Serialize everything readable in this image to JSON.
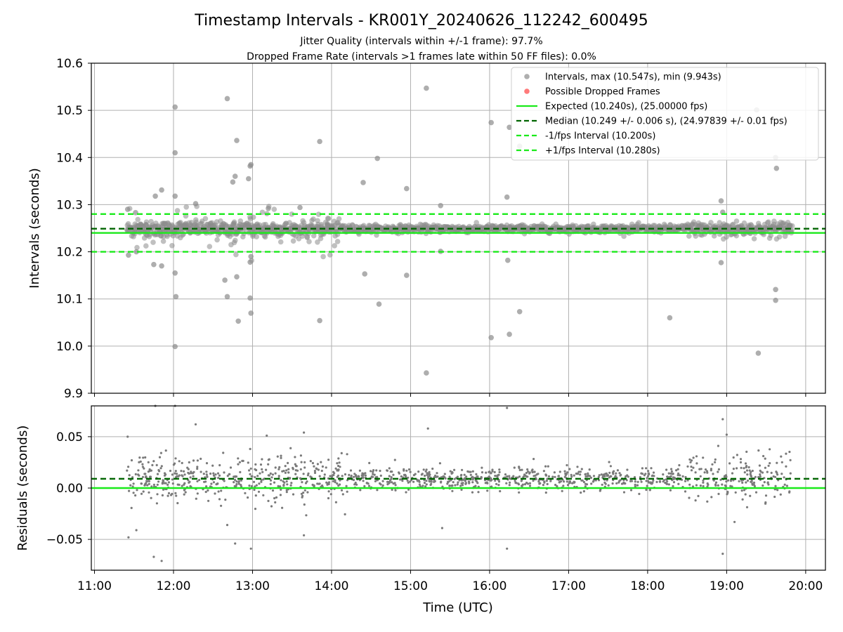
{
  "chart_data": [
    {
      "type": "scatter",
      "title": "Timestamp Intervals - KR001Y_20240626_112242_600495",
      "subtitle_lines": [
        "Jitter Quality (intervals within +/-1 frame): 97.7%",
        "Dropped Frame Rate (intervals >1 frames late within 50 FF files): 0.0%"
      ],
      "xlabel": "",
      "ylabel": "Intervals (seconds)",
      "xlim_hours": [
        10.96,
        20.25
      ],
      "ylim": [
        9.9,
        10.6
      ],
      "yticks": [
        9.9,
        10.0,
        10.1,
        10.2,
        10.3,
        10.4,
        10.5,
        10.6
      ],
      "ytick_labels": [
        "9.9",
        "10.0",
        "10.1",
        "10.2",
        "10.3",
        "10.4",
        "10.5",
        "10.6"
      ],
      "grid": true,
      "legend_position": "top-right",
      "legend": [
        "Intervals, max (10.547s), min (9.943s)",
        "Possible Dropped Frames",
        "Expected (10.240s), (25.00000 fps)",
        "Median (10.249 +/- 0.006 s), (24.97839 +/- 0.01 fps)",
        "-1/fps Interval (10.200s)",
        "+1/fps Interval (10.280s)"
      ],
      "reference_lines": {
        "expected": 10.24,
        "median": 10.249,
        "minus_1_fps": 10.2,
        "plus_1_fps": 10.28
      },
      "series": [
        {
          "name": "Intervals, max (10.547s), min (9.943s)",
          "time_range_hours": [
            11.41,
            19.83
          ],
          "dense_band_center": 10.249,
          "dense_band_halfwidth": 0.006,
          "outliers": [
            [
              11.42,
              10.29
            ],
            [
              11.43,
              10.193
            ],
            [
              11.52,
              10.283
            ],
            [
              11.53,
              10.2
            ],
            [
              11.75,
              10.173
            ],
            [
              11.77,
              10.318
            ],
            [
              11.85,
              10.331
            ],
            [
              11.85,
              10.17
            ],
            [
              12.02,
              10.507
            ],
            [
              12.02,
              10.41
            ],
            [
              12.02,
              10.318
            ],
            [
              12.02,
              10.155
            ],
            [
              12.03,
              10.105
            ],
            [
              12.02,
              9.999
            ],
            [
              12.28,
              10.302
            ],
            [
              12.65,
              10.14
            ],
            [
              12.68,
              10.525
            ],
            [
              12.68,
              10.105
            ],
            [
              12.75,
              10.348
            ],
            [
              12.78,
              10.36
            ],
            [
              12.8,
              10.436
            ],
            [
              12.8,
              10.147
            ],
            [
              12.82,
              10.053
            ],
            [
              12.95,
              10.355
            ],
            [
              12.97,
              10.382
            ],
            [
              12.98,
              10.385
            ],
            [
              12.98,
              10.19
            ],
            [
              12.97,
              10.178
            ],
            [
              12.97,
              10.102
            ],
            [
              12.98,
              10.07
            ],
            [
              13.2,
              10.292
            ],
            [
              13.6,
              10.294
            ],
            [
              13.85,
              10.434
            ],
            [
              13.85,
              10.054
            ],
            [
              14.4,
              10.347
            ],
            [
              14.42,
              10.153
            ],
            [
              14.58,
              10.398
            ],
            [
              14.6,
              10.089
            ],
            [
              14.95,
              10.334
            ],
            [
              14.95,
              10.15
            ],
            [
              15.2,
              10.547
            ],
            [
              15.2,
              9.943
            ],
            [
              15.38,
              10.298
            ],
            [
              15.38,
              10.201
            ],
            [
              16.02,
              10.474
            ],
            [
              16.02,
              10.018
            ],
            [
              16.22,
              10.316
            ],
            [
              16.23,
              10.182
            ],
            [
              16.25,
              10.464
            ],
            [
              16.25,
              10.025
            ],
            [
              16.38,
              10.424
            ],
            [
              16.38,
              10.073
            ],
            [
              18.28,
              10.06
            ],
            [
              18.93,
              10.308
            ],
            [
              18.93,
              10.177
            ],
            [
              18.95,
              10.284
            ],
            [
              19.38,
              10.501
            ],
            [
              19.4,
              9.985
            ],
            [
              19.62,
              10.4
            ],
            [
              19.63,
              10.377
            ],
            [
              19.62,
              10.12
            ],
            [
              19.62,
              10.097
            ]
          ]
        },
        {
          "name": "Possible Dropped Frames",
          "points": []
        }
      ],
      "colors": {
        "intervals": "#8c8c8c",
        "dropped": "#ff4d4d",
        "expected": "#1aea1a",
        "median": "#006400",
        "interval_band": "#1aea1a"
      }
    },
    {
      "type": "scatter",
      "xlabel": "Time (UTC)",
      "ylabel": "Residuals (seconds)",
      "xlim_hours": [
        10.96,
        20.25
      ],
      "ylim": [
        -0.08,
        0.08
      ],
      "yticks": [
        -0.05,
        0.0,
        0.05
      ],
      "ytick_labels": [
        "−0.05",
        "0.00",
        "0.05"
      ],
      "xticks_hours": [
        11,
        12,
        13,
        14,
        15,
        16,
        17,
        18,
        19,
        20
      ],
      "xtick_labels": [
        "11:00",
        "12:00",
        "13:00",
        "14:00",
        "15:00",
        "16:00",
        "17:00",
        "18:00",
        "19:00",
        "20:00"
      ],
      "grid": true,
      "reference_lines": {
        "zero": 0.0,
        "median_residual": 0.009
      },
      "series": [
        {
          "name": "Residuals",
          "time_range_hours": [
            11.41,
            19.83
          ],
          "outliers": [
            [
              11.42,
              0.05
            ],
            [
              11.43,
              -0.048
            ],
            [
              11.53,
              -0.041
            ],
            [
              11.75,
              -0.067
            ],
            [
              11.77,
              0.08
            ],
            [
              11.85,
              -0.071
            ],
            [
              12.02,
              0.08
            ],
            [
              12.28,
              0.062
            ],
            [
              12.68,
              -0.036
            ],
            [
              12.78,
              -0.054
            ],
            [
              12.97,
              0.038
            ],
            [
              12.98,
              -0.059
            ],
            [
              13.18,
              0.051
            ],
            [
              13.65,
              -0.046
            ],
            [
              13.65,
              0.054
            ],
            [
              15.22,
              0.058
            ],
            [
              15.4,
              -0.039
            ],
            [
              16.22,
              0.078
            ],
            [
              16.22,
              -0.059
            ],
            [
              18.95,
              0.067
            ],
            [
              18.95,
              -0.064
            ],
            [
              19.0,
              0.052
            ],
            [
              19.1,
              -0.033
            ]
          ]
        }
      ],
      "colors": {
        "residuals": "#7a7a7a",
        "zero": "#1aea1a",
        "median": "#006400"
      }
    }
  ]
}
